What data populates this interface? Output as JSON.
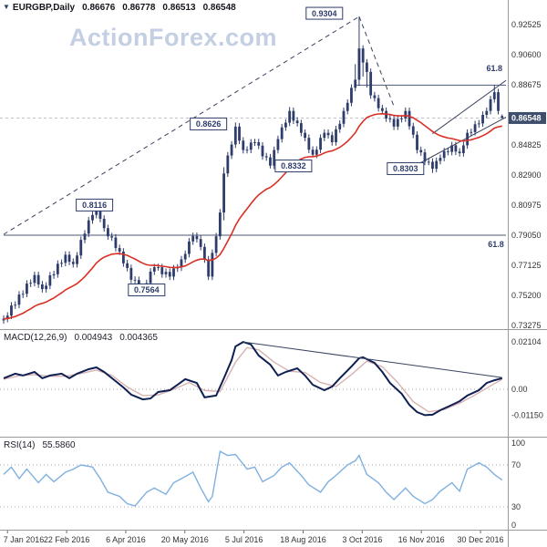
{
  "watermark": "ActionForex.com",
  "icons": {
    "symbol_arrow": "▼"
  },
  "header": {
    "symbol": "EURGBP,Daily",
    "open": "0.86676",
    "high": "0.86778",
    "low": "0.86513",
    "close": "0.86548"
  },
  "indicators": {
    "macd": {
      "name": "MACD(12,26,9)",
      "main_value": "0.004943",
      "signal_value": "0.004365"
    },
    "rsi": {
      "name": "RSI(14)",
      "value": "55.5860"
    }
  },
  "colors": {
    "candle": "#2e3d6b",
    "ma": "#d93025",
    "macd_main": "#101f52",
    "macd_signal": "#d8b2b2",
    "rsi_line": "#7fb0e0",
    "annotation": "#2e3d6b",
    "trendline": "#39425e",
    "fib": "#4a5878",
    "axis_text": "#333333",
    "price_box_bg": "#3f4e6d",
    "grid_dotted": "#aaaaaa",
    "current_price_line": "#c0c0cc",
    "watermark": "#c4cfe4"
  },
  "chart_data": {
    "type": "candlestick",
    "title": "EURGBP Daily with MACD and RSI",
    "x_dates": [
      {
        "label": "7 Jan 2016",
        "idx": 1
      },
      {
        "label": "22 Feb 2016",
        "idx": 16.3
      },
      {
        "label": "6 Apr 2016",
        "idx": 31.6
      },
      {
        "label": "20 May 2016",
        "idx": 46.9
      },
      {
        "label": "5 Jul 2016",
        "idx": 62.2
      },
      {
        "label": "18 Aug 2016",
        "idx": 77.5
      },
      {
        "label": "3 Oct 2016",
        "idx": 92.8
      },
      {
        "label": "16 Nov 2016",
        "idx": 108.1
      },
      {
        "label": "30 Dec 2016",
        "idx": 123.4
      }
    ],
    "panels": {
      "price": {
        "type": "candlestick",
        "n": 130,
        "first_open": 0.736,
        "wick_pad": 0.0022,
        "closes": [
          0.737,
          0.739,
          0.7455,
          0.746,
          0.7525,
          0.753,
          0.7595,
          0.76,
          0.765,
          0.759,
          0.756,
          0.7582,
          0.7648,
          0.7655,
          0.7722,
          0.7728,
          0.778,
          0.7735,
          0.772,
          0.7775,
          0.7875,
          0.7915,
          0.8,
          0.8035,
          0.81,
          0.801,
          0.795,
          0.7898,
          0.789,
          0.7823,
          0.78,
          0.7725,
          0.7695,
          0.762,
          0.7618,
          0.7572,
          0.757,
          0.7598,
          0.7672,
          0.77,
          0.77,
          0.7655,
          0.767,
          0.764,
          0.7692,
          0.7698,
          0.775,
          0.7785,
          0.7865,
          0.79,
          0.788,
          0.783,
          0.775,
          0.764,
          0.7792,
          0.7898,
          0.805,
          0.83,
          0.8415,
          0.8485,
          0.86,
          0.851,
          0.845,
          0.8452,
          0.8498,
          0.85,
          0.8478,
          0.841,
          0.8403,
          0.835,
          0.845,
          0.852,
          0.8595,
          0.8625,
          0.87,
          0.8638,
          0.8622,
          0.856,
          0.8528,
          0.8452,
          0.842,
          0.8452,
          0.8528,
          0.856,
          0.8545,
          0.85,
          0.8582,
          0.8618,
          0.87,
          0.8752,
          0.8848,
          0.89,
          0.91,
          0.901,
          0.895,
          0.88,
          0.8782,
          0.8718,
          0.87,
          0.8652,
          0.8648,
          0.86,
          0.8648,
          0.8652,
          0.87,
          0.8602,
          0.8548,
          0.845,
          0.8435,
          0.8375,
          0.8375,
          0.833,
          0.838,
          0.84,
          0.8442,
          0.8438,
          0.848,
          0.844,
          0.843,
          0.848,
          0.856,
          0.8565,
          0.8615,
          0.862,
          0.8675,
          0.87,
          0.8775,
          0.882,
          0.87,
          0.86548
        ],
        "ohlc_overrides": {
          "24": {
            "h": 0.8116
          },
          "36": {
            "l": 0.7564
          },
          "57": {
            "h": 0.834,
            "l": 0.8
          },
          "60": {
            "h": 0.8626
          },
          "69": {
            "l": 0.8332
          },
          "74": {
            "h": 0.8725
          },
          "80": {
            "l": 0.8405
          },
          "91": {
            "h": 0.9
          },
          "92": {
            "h": 0.9304,
            "l": 0.886
          },
          "93": {
            "h": 0.912,
            "l": 0.892
          },
          "94": {
            "l": 0.885
          },
          "111": {
            "l": 0.8303
          },
          "127": {
            "h": 0.8865
          },
          "129": {
            "o": 0.86676,
            "h": 0.86778,
            "l": 0.86513,
            "c": 0.86548
          }
        },
        "ma": {
          "kind": "ema",
          "period": 25
        },
        "y_range": [
          0.7304,
          0.941
        ],
        "y_ticks": [
          "0.92525",
          "0.90600",
          "0.88675",
          "0.84825",
          "0.82900",
          "0.80975",
          "0.79050",
          "0.77125",
          "0.75200",
          "0.73275"
        ],
        "current_price": "0.86548",
        "swing_labels": [
          {
            "text": "0.9304",
            "idx": 83,
            "price": 0.9325
          },
          {
            "text": "0.8626",
            "idx": 53,
            "price": 0.8617
          },
          {
            "text": "0.8332",
            "idx": 75,
            "price": 0.8348
          },
          {
            "text": "0.8303",
            "idx": 104,
            "price": 0.8331
          },
          {
            "text": "0.8116",
            "idx": 23.5,
            "price": 0.8098
          },
          {
            "text": "0.7564",
            "idx": 37,
            "price": 0.7555
          }
        ],
        "fib_labels": [
          {
            "text": "61.8",
            "idx": 127,
            "price": 0.8973
          },
          {
            "text": "61.8",
            "idx": 127.4,
            "price": 0.7847
          }
        ],
        "lines": [
          {
            "style": "dashed",
            "from": [
              0,
              0.791
            ],
            "to": [
              92,
              0.9304
            ]
          },
          {
            "style": "dashed",
            "from": [
              92,
              0.9304
            ],
            "to": [
              101,
              0.873
            ]
          },
          {
            "style": "solid",
            "from": [
              105,
              0.833
            ],
            "to": [
              130,
              0.866
            ]
          },
          {
            "style": "solid",
            "from": [
              111,
              0.8555
            ],
            "to": [
              130,
              0.8895
            ]
          },
          {
            "style": "fib",
            "from": [
              91,
              0.8865
            ],
            "to": [
              130,
              0.8865
            ]
          },
          {
            "style": "fib",
            "from": [
              0,
              0.7905
            ],
            "to": [
              130,
              0.7905
            ]
          }
        ]
      },
      "macd": {
        "type": "line",
        "name": "MACD(12,26,9)",
        "y_ticks": [
          "0.02104",
          "0.00",
          "-0.01150"
        ],
        "main": [
          [
            0,
            0.0049
          ],
          [
            3,
            0.0069
          ],
          [
            5,
            0.0061
          ],
          [
            8,
            0.0077
          ],
          [
            10,
            0.0049
          ],
          [
            12,
            0.0061
          ],
          [
            15,
            0.0069
          ],
          [
            17,
            0.0049
          ],
          [
            19,
            0.0069
          ],
          [
            22,
            0.0089
          ],
          [
            24,
            0.0097
          ],
          [
            26,
            0.0077
          ],
          [
            29,
            0.0036
          ],
          [
            31,
            0.0008
          ],
          [
            33,
            -0.0024
          ],
          [
            36,
            -0.0045
          ],
          [
            38,
            -0.0041
          ],
          [
            40,
            -0.0012
          ],
          [
            43,
            -0.0004
          ],
          [
            45,
            0.002
          ],
          [
            47,
            0.0045
          ],
          [
            50,
            0.0028
          ],
          [
            52,
            -0.0036
          ],
          [
            55,
            -0.0028
          ],
          [
            57,
            0.0049
          ],
          [
            59,
            0.013
          ],
          [
            60,
            0.019
          ],
          [
            62,
            0.021
          ],
          [
            64,
            0.0199
          ],
          [
            66,
            0.015
          ],
          [
            69,
            0.0109
          ],
          [
            71,
            0.0061
          ],
          [
            73,
            0.0077
          ],
          [
            76,
            0.0093
          ],
          [
            78,
            0.0061
          ],
          [
            80,
            0.002
          ],
          [
            83,
            -0.0004
          ],
          [
            85,
            0.0012
          ],
          [
            87,
            0.0049
          ],
          [
            90,
            0.0101
          ],
          [
            92,
            0.0138
          ],
          [
            93,
            0.0142
          ],
          [
            96,
            0.0117
          ],
          [
            98,
            0.0077
          ],
          [
            100,
            0.0028
          ],
          [
            103,
            -0.002
          ],
          [
            105,
            -0.0069
          ],
          [
            107,
            -0.0101
          ],
          [
            109,
            -0.0115
          ],
          [
            111,
            -0.0113
          ],
          [
            113,
            -0.0093
          ],
          [
            116,
            -0.0069
          ],
          [
            118,
            -0.0053
          ],
          [
            120,
            -0.0028
          ],
          [
            123,
            -0.0004
          ],
          [
            125,
            0.0028
          ],
          [
            127,
            0.004
          ],
          [
            129,
            0.004943
          ]
        ],
        "signal": [
          [
            0,
            0.0045
          ],
          [
            4,
            0.006
          ],
          [
            8,
            0.0065
          ],
          [
            12,
            0.0058
          ],
          [
            16,
            0.0058
          ],
          [
            20,
            0.007
          ],
          [
            24,
            0.0085
          ],
          [
            28,
            0.0062
          ],
          [
            32,
            0.001
          ],
          [
            36,
            -0.0028
          ],
          [
            40,
            -0.0025
          ],
          [
            44,
            0
          ],
          [
            48,
            0.003
          ],
          [
            52,
            -0.0005
          ],
          [
            56,
            -0.001
          ],
          [
            60,
            0.012
          ],
          [
            63,
            0.0185
          ],
          [
            66,
            0.0175
          ],
          [
            70,
            0.012
          ],
          [
            74,
            0.008
          ],
          [
            78,
            0.0075
          ],
          [
            82,
            0.003
          ],
          [
            86,
            0.0012
          ],
          [
            90,
            0.0065
          ],
          [
            94,
            0.0125
          ],
          [
            98,
            0.01
          ],
          [
            102,
            0.003
          ],
          [
            106,
            -0.0055
          ],
          [
            110,
            -0.01
          ],
          [
            114,
            -0.009
          ],
          [
            118,
            -0.0062
          ],
          [
            122,
            -0.0025
          ],
          [
            126,
            0.0015
          ],
          [
            129,
            0.004365
          ]
        ],
        "trendline": {
          "from": [
            62,
            0.021
          ],
          "to": [
            129,
            0.0052
          ]
        }
      },
      "rsi": {
        "type": "line",
        "name": "RSI(14)",
        "y_ticks": [
          "100",
          "70",
          "30",
          "0"
        ],
        "levels": [
          70,
          30
        ],
        "values": [
          [
            0,
            61
          ],
          [
            2,
            68
          ],
          [
            4,
            57
          ],
          [
            6,
            66
          ],
          [
            9,
            53
          ],
          [
            11,
            61
          ],
          [
            13,
            54
          ],
          [
            16,
            63
          ],
          [
            18,
            66
          ],
          [
            20,
            70
          ],
          [
            23,
            68
          ],
          [
            25,
            57
          ],
          [
            27,
            44
          ],
          [
            30,
            40
          ],
          [
            32,
            33
          ],
          [
            34,
            31
          ],
          [
            37,
            44
          ],
          [
            39,
            48
          ],
          [
            42,
            42
          ],
          [
            44,
            53
          ],
          [
            46,
            57
          ],
          [
            49,
            63
          ],
          [
            51,
            48
          ],
          [
            53,
            35
          ],
          [
            54,
            40
          ],
          [
            56,
            83
          ],
          [
            58,
            79
          ],
          [
            60,
            80
          ],
          [
            63,
            66
          ],
          [
            65,
            68
          ],
          [
            67,
            54
          ],
          [
            70,
            60
          ],
          [
            72,
            68
          ],
          [
            74,
            72
          ],
          [
            77,
            60
          ],
          [
            79,
            51
          ],
          [
            82,
            44
          ],
          [
            84,
            54
          ],
          [
            86,
            60
          ],
          [
            89,
            70
          ],
          [
            91,
            74
          ],
          [
            92,
            79
          ],
          [
            94,
            61
          ],
          [
            97,
            53
          ],
          [
            99,
            44
          ],
          [
            101,
            37
          ],
          [
            104,
            48
          ],
          [
            106,
            40
          ],
          [
            109,
            33
          ],
          [
            111,
            37
          ],
          [
            113,
            45
          ],
          [
            116,
            53
          ],
          [
            118,
            45
          ],
          [
            120,
            66
          ],
          [
            123,
            72
          ],
          [
            125,
            68
          ],
          [
            127,
            61
          ],
          [
            129,
            55.586
          ]
        ]
      }
    }
  }
}
